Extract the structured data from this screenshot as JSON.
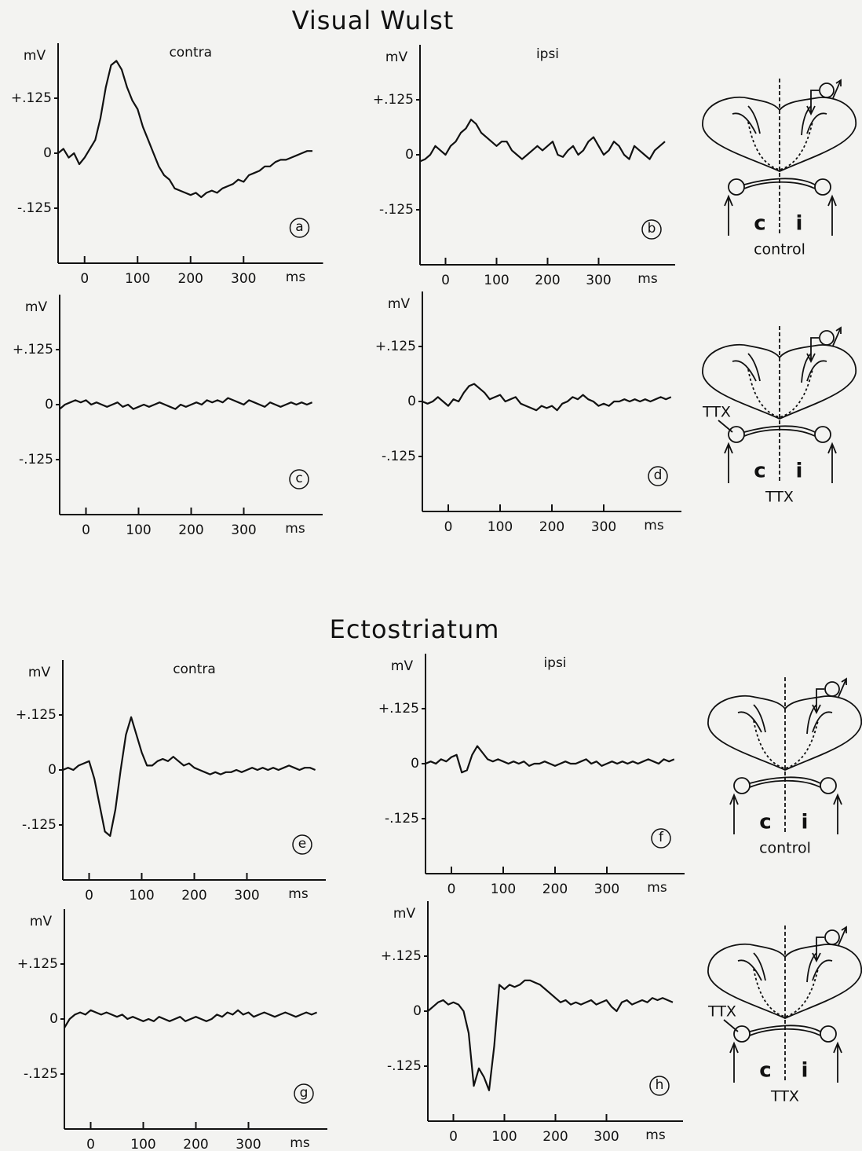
{
  "sections": [
    {
      "title": "Visual Wulst"
    },
    {
      "title": "Ectostriatum"
    }
  ],
  "chart_data": [
    {
      "type": "line",
      "title": "contra",
      "panel": "a",
      "ylabel": "mV",
      "xlabel": "ms",
      "color": "#111111",
      "xlim": [
        -50,
        450
      ],
      "ylim": [
        -0.25,
        0.25
      ],
      "xticks": [
        0,
        100,
        200,
        300
      ],
      "yticks": [
        {
          "value": -0.125,
          "label": "-.125"
        },
        0,
        {
          "value": 0.125,
          "label": "+.125"
        }
      ],
      "x": [
        -50,
        -40,
        -30,
        -20,
        -10,
        0,
        10,
        20,
        30,
        40,
        50,
        60,
        70,
        80,
        90,
        100,
        110,
        120,
        130,
        140,
        150,
        160,
        170,
        180,
        190,
        200,
        210,
        220,
        230,
        240,
        250,
        260,
        270,
        280,
        290,
        300,
        310,
        320,
        330,
        340,
        350,
        360,
        370,
        380,
        390,
        400,
        410,
        420,
        430
      ],
      "values": [
        0.0,
        0.01,
        -0.01,
        0.0,
        -0.025,
        -0.01,
        0.01,
        0.03,
        0.08,
        0.15,
        0.2,
        0.21,
        0.19,
        0.15,
        0.12,
        0.1,
        0.06,
        0.03,
        0.0,
        -0.03,
        -0.05,
        -0.06,
        -0.08,
        -0.085,
        -0.09,
        -0.095,
        -0.09,
        -0.1,
        -0.09,
        -0.085,
        -0.09,
        -0.08,
        -0.075,
        -0.07,
        -0.06,
        -0.065,
        -0.05,
        -0.045,
        -0.04,
        -0.03,
        -0.03,
        -0.02,
        -0.015,
        -0.015,
        -0.01,
        -0.005,
        0.0,
        0.005,
        0.005
      ]
    },
    {
      "type": "line",
      "title": "ipsi",
      "panel": "b",
      "ylabel": "mV",
      "xlabel": "ms",
      "color": "#111111",
      "xlim": [
        -50,
        450
      ],
      "ylim": [
        -0.25,
        0.25
      ],
      "xticks": [
        0,
        100,
        200,
        300
      ],
      "yticks": [
        {
          "value": -0.125,
          "label": "-.125"
        },
        0,
        {
          "value": 0.125,
          "label": "+.125"
        }
      ],
      "x": [
        -50,
        -40,
        -30,
        -20,
        -10,
        0,
        10,
        20,
        30,
        40,
        50,
        60,
        70,
        80,
        90,
        100,
        110,
        120,
        130,
        140,
        150,
        160,
        170,
        180,
        190,
        200,
        210,
        220,
        230,
        240,
        250,
        260,
        270,
        280,
        290,
        300,
        310,
        320,
        330,
        340,
        350,
        360,
        370,
        380,
        390,
        400,
        410,
        420,
        430
      ],
      "values": [
        -0.015,
        -0.01,
        0.0,
        0.02,
        0.01,
        0.0,
        0.02,
        0.03,
        0.05,
        0.06,
        0.08,
        0.07,
        0.05,
        0.04,
        0.03,
        0.02,
        0.03,
        0.03,
        0.01,
        0.0,
        -0.01,
        0.0,
        0.01,
        0.02,
        0.01,
        0.02,
        0.03,
        0.0,
        -0.005,
        0.01,
        0.02,
        0.0,
        0.01,
        0.03,
        0.04,
        0.02,
        0.0,
        0.01,
        0.03,
        0.02,
        0.0,
        -0.01,
        0.02,
        0.01,
        0.0,
        -0.01,
        0.01,
        0.02,
        0.03
      ]
    },
    {
      "type": "line",
      "panel": "c",
      "ylabel": "mV",
      "xlabel": "ms",
      "color": "#111111",
      "xlim": [
        -50,
        450
      ],
      "ylim": [
        -0.25,
        0.25
      ],
      "xticks": [
        0,
        100,
        200,
        300
      ],
      "yticks": [
        {
          "value": -0.125,
          "label": "-.125"
        },
        0,
        {
          "value": 0.125,
          "label": "+.125"
        }
      ],
      "x": [
        -50,
        -40,
        -30,
        -20,
        -10,
        0,
        10,
        20,
        30,
        40,
        50,
        60,
        70,
        80,
        90,
        100,
        110,
        120,
        130,
        140,
        150,
        160,
        170,
        180,
        190,
        200,
        210,
        220,
        230,
        240,
        250,
        260,
        270,
        280,
        290,
        300,
        310,
        320,
        330,
        340,
        350,
        360,
        370,
        380,
        390,
        400,
        410,
        420,
        430
      ],
      "values": [
        -0.01,
        0.0,
        0.005,
        0.01,
        0.005,
        0.01,
        0.0,
        0.005,
        0.0,
        -0.005,
        0.0,
        0.005,
        -0.005,
        0.0,
        -0.01,
        -0.005,
        0.0,
        -0.005,
        0.0,
        0.005,
        0.0,
        -0.005,
        -0.01,
        0.0,
        -0.005,
        0.0,
        0.005,
        0.0,
        0.01,
        0.005,
        0.01,
        0.005,
        0.015,
        0.01,
        0.005,
        0.0,
        0.01,
        0.005,
        0.0,
        -0.005,
        0.005,
        0.0,
        -0.005,
        0.0,
        0.005,
        0.0,
        0.005,
        0.0,
        0.005
      ]
    },
    {
      "type": "line",
      "panel": "d",
      "ylabel": "mV",
      "xlabel": "ms",
      "color": "#111111",
      "xlim": [
        -50,
        450
      ],
      "ylim": [
        -0.25,
        0.25
      ],
      "xticks": [
        0,
        100,
        200,
        300
      ],
      "yticks": [
        {
          "value": -0.125,
          "label": "-.125"
        },
        0,
        {
          "value": 0.125,
          "label": "+.125"
        }
      ],
      "x": [
        -50,
        -40,
        -30,
        -20,
        -10,
        0,
        10,
        20,
        30,
        40,
        50,
        60,
        70,
        80,
        90,
        100,
        110,
        120,
        130,
        140,
        150,
        160,
        170,
        180,
        190,
        200,
        210,
        220,
        230,
        240,
        250,
        260,
        270,
        280,
        290,
        300,
        310,
        320,
        330,
        340,
        350,
        360,
        370,
        380,
        390,
        400,
        410,
        420,
        430
      ],
      "values": [
        0.0,
        -0.005,
        0.0,
        0.01,
        0.0,
        -0.01,
        0.005,
        0.0,
        0.02,
        0.035,
        0.04,
        0.03,
        0.02,
        0.005,
        0.01,
        0.015,
        0.0,
        0.005,
        0.01,
        -0.005,
        -0.01,
        -0.015,
        -0.02,
        -0.01,
        -0.015,
        -0.01,
        -0.02,
        -0.005,
        0.0,
        0.01,
        0.005,
        0.015,
        0.005,
        0.0,
        -0.01,
        -0.005,
        -0.01,
        0.0,
        0.0,
        0.005,
        0.0,
        0.005,
        0.0,
        0.005,
        0.0,
        0.005,
        0.01,
        0.005,
        0.01
      ]
    },
    {
      "type": "line",
      "title": "contra",
      "panel": "e",
      "ylabel": "mV",
      "xlabel": "ms",
      "color": "#111111",
      "xlim": [
        -50,
        450
      ],
      "ylim": [
        -0.25,
        0.25
      ],
      "xticks": [
        0,
        100,
        200,
        300
      ],
      "yticks": [
        {
          "value": -0.125,
          "label": "-.125"
        },
        0,
        {
          "value": 0.125,
          "label": "+.125"
        }
      ],
      "x": [
        -50,
        -40,
        -30,
        -20,
        -10,
        0,
        10,
        20,
        30,
        40,
        50,
        60,
        70,
        80,
        90,
        100,
        110,
        120,
        130,
        140,
        150,
        160,
        170,
        180,
        190,
        200,
        210,
        220,
        230,
        240,
        250,
        260,
        270,
        280,
        290,
        300,
        310,
        320,
        330,
        340,
        350,
        360,
        370,
        380,
        390,
        400,
        410,
        420,
        430
      ],
      "values": [
        0.0,
        0.005,
        0.0,
        0.01,
        0.015,
        0.02,
        -0.02,
        -0.08,
        -0.14,
        -0.15,
        -0.09,
        0.0,
        0.08,
        0.12,
        0.08,
        0.04,
        0.01,
        0.01,
        0.02,
        0.025,
        0.02,
        0.03,
        0.02,
        0.01,
        0.015,
        0.005,
        0.0,
        -0.005,
        -0.01,
        -0.005,
        -0.01,
        -0.005,
        -0.005,
        0.0,
        -0.005,
        0.0,
        0.005,
        0.0,
        0.005,
        0.0,
        0.005,
        0.0,
        0.005,
        0.01,
        0.005,
        0.0,
        0.005,
        0.005,
        0.0
      ]
    },
    {
      "type": "line",
      "title": "ipsi",
      "panel": "f",
      "ylabel": "mV",
      "xlabel": "ms",
      "color": "#111111",
      "xlim": [
        -50,
        450
      ],
      "ylim": [
        -0.25,
        0.25
      ],
      "xticks": [
        0,
        100,
        200,
        300
      ],
      "yticks": [
        {
          "value": -0.125,
          "label": "-.125"
        },
        0,
        {
          "value": 0.125,
          "label": "+.125"
        }
      ],
      "x": [
        -50,
        -40,
        -30,
        -20,
        -10,
        0,
        10,
        20,
        30,
        40,
        50,
        60,
        70,
        80,
        90,
        100,
        110,
        120,
        130,
        140,
        150,
        160,
        170,
        180,
        190,
        200,
        210,
        220,
        230,
        240,
        250,
        260,
        270,
        280,
        290,
        300,
        310,
        320,
        330,
        340,
        350,
        360,
        370,
        380,
        390,
        400,
        410,
        420,
        430
      ],
      "values": [
        0.0,
        0.005,
        0.0,
        0.01,
        0.005,
        0.015,
        0.02,
        -0.02,
        -0.015,
        0.02,
        0.04,
        0.025,
        0.01,
        0.005,
        0.01,
        0.005,
        0.0,
        0.005,
        0.0,
        0.005,
        -0.005,
        0.0,
        0.0,
        0.005,
        0.0,
        -0.005,
        0.0,
        0.005,
        0.0,
        0.0,
        0.005,
        0.01,
        0.0,
        0.005,
        -0.005,
        0.0,
        0.005,
        0.0,
        0.005,
        0.0,
        0.005,
        0.0,
        0.005,
        0.01,
        0.005,
        0.0,
        0.01,
        0.005,
        0.01
      ]
    },
    {
      "type": "line",
      "panel": "g",
      "ylabel": "mV",
      "xlabel": "ms",
      "color": "#111111",
      "xlim": [
        -50,
        450
      ],
      "ylim": [
        -0.25,
        0.25
      ],
      "xticks": [
        0,
        100,
        200,
        300
      ],
      "yticks": [
        {
          "value": -0.125,
          "label": "-.125"
        },
        0,
        {
          "value": 0.125,
          "label": "+.125"
        }
      ],
      "x": [
        -50,
        -40,
        -30,
        -20,
        -10,
        0,
        10,
        20,
        30,
        40,
        50,
        60,
        70,
        80,
        90,
        100,
        110,
        120,
        130,
        140,
        150,
        160,
        170,
        180,
        190,
        200,
        210,
        220,
        230,
        240,
        250,
        260,
        270,
        280,
        290,
        300,
        310,
        320,
        330,
        340,
        350,
        360,
        370,
        380,
        390,
        400,
        410,
        420,
        430
      ],
      "values": [
        -0.02,
        0.0,
        0.01,
        0.015,
        0.01,
        0.02,
        0.015,
        0.01,
        0.015,
        0.01,
        0.005,
        0.01,
        0.0,
        0.005,
        0.0,
        -0.005,
        0.0,
        -0.005,
        0.005,
        0.0,
        -0.005,
        0.0,
        0.005,
        -0.005,
        0.0,
        0.005,
        0.0,
        -0.005,
        0.0,
        0.01,
        0.005,
        0.015,
        0.01,
        0.02,
        0.01,
        0.015,
        0.005,
        0.01,
        0.015,
        0.01,
        0.005,
        0.01,
        0.015,
        0.01,
        0.005,
        0.01,
        0.015,
        0.01,
        0.015
      ]
    },
    {
      "type": "line",
      "panel": "h",
      "ylabel": "mV",
      "xlabel": "ms",
      "color": "#111111",
      "xlim": [
        -50,
        450
      ],
      "ylim": [
        -0.25,
        0.25
      ],
      "xticks": [
        0,
        100,
        200,
        300
      ],
      "yticks": [
        {
          "value": -0.125,
          "label": "-.125"
        },
        0,
        {
          "value": 0.125,
          "label": "+.125"
        }
      ],
      "x": [
        -50,
        -40,
        -30,
        -20,
        -10,
        0,
        10,
        20,
        30,
        40,
        50,
        60,
        70,
        80,
        90,
        100,
        110,
        120,
        130,
        140,
        150,
        160,
        170,
        180,
        190,
        200,
        210,
        220,
        230,
        240,
        250,
        260,
        270,
        280,
        290,
        300,
        310,
        320,
        330,
        340,
        350,
        360,
        370,
        380,
        390,
        400,
        410,
        420,
        430
      ],
      "values": [
        0.0,
        0.01,
        0.02,
        0.025,
        0.015,
        0.02,
        0.015,
        0.0,
        -0.05,
        -0.17,
        -0.13,
        -0.15,
        -0.18,
        -0.08,
        0.06,
        0.05,
        0.06,
        0.055,
        0.06,
        0.07,
        0.07,
        0.065,
        0.06,
        0.05,
        0.04,
        0.03,
        0.02,
        0.025,
        0.015,
        0.02,
        0.015,
        0.02,
        0.025,
        0.015,
        0.02,
        0.025,
        0.01,
        0.0,
        0.02,
        0.025,
        0.015,
        0.02,
        0.025,
        0.02,
        0.03,
        0.025,
        0.03,
        0.025,
        0.02
      ]
    }
  ],
  "schematics": [
    {
      "left": "c",
      "right": "i",
      "condition": "control"
    },
    {
      "left": "c",
      "right": "i",
      "condition": "TTX",
      "lesion": "TTX"
    },
    {
      "left": "c",
      "right": "i",
      "condition": "control"
    },
    {
      "left": "c",
      "right": "i",
      "condition": "TTX",
      "lesion": "TTX"
    }
  ]
}
